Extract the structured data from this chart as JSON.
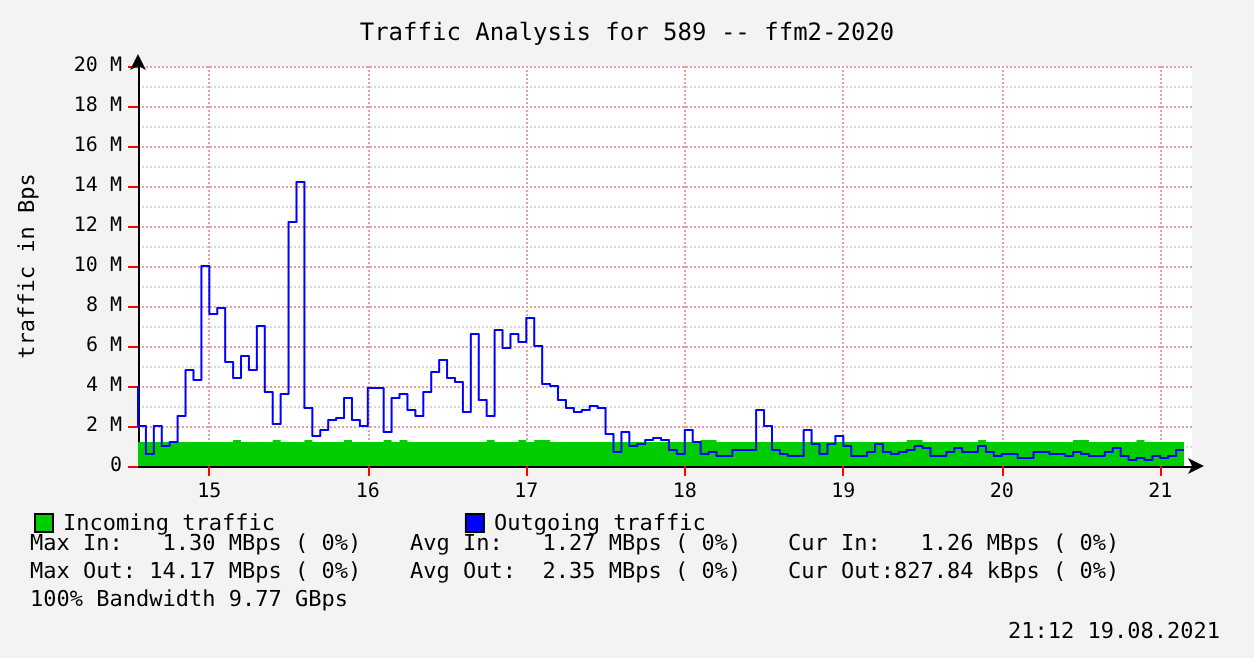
{
  "chart_data": {
    "type": "area",
    "title": "Traffic Analysis for 589 -- ffm2-2020",
    "ylabel": "traffic in Bps",
    "x": [
      14.55,
      14.6,
      14.65,
      14.7,
      14.75,
      14.8,
      14.85,
      14.9,
      14.95,
      15,
      15.05,
      15.1,
      15.15,
      15.2,
      15.25,
      15.3,
      15.35,
      15.4,
      15.45,
      15.5,
      15.55,
      15.6,
      15.65,
      15.7,
      15.75,
      15.8,
      15.85,
      15.9,
      15.95,
      16,
      16.05,
      16.1,
      16.15,
      16.2,
      16.25,
      16.3,
      16.35,
      16.4,
      16.45,
      16.5,
      16.55,
      16.6,
      16.65,
      16.7,
      16.75,
      16.8,
      16.85,
      16.9,
      16.95,
      17,
      17.05,
      17.1,
      17.15,
      17.2,
      17.25,
      17.3,
      17.35,
      17.4,
      17.45,
      17.5,
      17.55,
      17.6,
      17.65,
      17.7,
      17.75,
      17.8,
      17.85,
      17.9,
      17.95,
      18,
      18.05,
      18.1,
      18.15,
      18.2,
      18.25,
      18.3,
      18.35,
      18.4,
      18.45,
      18.5,
      18.55,
      18.6,
      18.65,
      18.7,
      18.75,
      18.8,
      18.85,
      18.9,
      18.95,
      19,
      19.05,
      19.1,
      19.15,
      19.2,
      19.25,
      19.3,
      19.35,
      19.4,
      19.45,
      19.5,
      19.55,
      19.6,
      19.65,
      19.7,
      19.75,
      19.8,
      19.85,
      19.9,
      19.95,
      20,
      20.05,
      20.1,
      20.15,
      20.2,
      20.25,
      20.3,
      20.35,
      20.4,
      20.45,
      20.5,
      20.55,
      20.6,
      20.65,
      20.7,
      20.75,
      20.8,
      20.85,
      20.9,
      20.95,
      21,
      21.05,
      21.1,
      21.15
    ],
    "series": [
      {
        "name": "Incoming traffic",
        "color": "#00cc00",
        "values": [
          1.2,
          1.2,
          1.2,
          1.2,
          1.2,
          1.2,
          1.2,
          1.2,
          1.2,
          1.2,
          1.2,
          1.2,
          1.2,
          1.3,
          1.2,
          1.2,
          1.2,
          1.2,
          1.3,
          1.2,
          1.2,
          1.2,
          1.3,
          1.2,
          1.2,
          1.2,
          1.2,
          1.3,
          1.2,
          1.2,
          1.2,
          1.2,
          1.3,
          1.2,
          1.3,
          1.2,
          1.2,
          1.2,
          1.2,
          1.2,
          1.2,
          1.2,
          1.2,
          1.2,
          1.2,
          1.3,
          1.2,
          1.2,
          1.2,
          1.3,
          1.2,
          1.3,
          1.3,
          1.2,
          1.2,
          1.2,
          1.2,
          1.2,
          1.2,
          1.2,
          1.2,
          1.2,
          1.2,
          1.2,
          1.2,
          1.2,
          1.2,
          1.2,
          1.2,
          1.2,
          1.2,
          1.2,
          1.3,
          1.3,
          1.2,
          1.2,
          1.2,
          1.2,
          1.2,
          1.2,
          1.2,
          1.2,
          1.2,
          1.2,
          1.2,
          1.2,
          1.2,
          1.2,
          1.2,
          1.2,
          1.2,
          1.2,
          1.2,
          1.2,
          1.2,
          1.2,
          1.2,
          1.2,
          1.3,
          1.3,
          1.2,
          1.2,
          1.2,
          1.2,
          1.2,
          1.2,
          1.2,
          1.3,
          1.2,
          1.2,
          1.2,
          1.2,
          1.2,
          1.2,
          1.2,
          1.2,
          1.2,
          1.2,
          1.2,
          1.3,
          1.3,
          1.2,
          1.2,
          1.2,
          1.2,
          1.2,
          1.2,
          1.3,
          1.2,
          1.2,
          1.2,
          1.2,
          1.2
        ]
      },
      {
        "name": "Outgoing traffic",
        "type": "step",
        "color": "#0000ff",
        "values": [
          4.0,
          2.0,
          0.6,
          2.0,
          1.0,
          1.2,
          2.5,
          4.8,
          4.3,
          10.0,
          7.6,
          7.9,
          5.2,
          4.4,
          5.5,
          4.8,
          7.0,
          3.7,
          2.1,
          3.6,
          12.2,
          14.2,
          2.9,
          1.5,
          1.8,
          2.3,
          2.4,
          3.4,
          2.3,
          2.0,
          3.9,
          3.9,
          1.7,
          3.4,
          3.6,
          2.8,
          2.5,
          3.7,
          4.7,
          5.3,
          4.4,
          4.2,
          2.7,
          6.6,
          3.3,
          2.5,
          6.8,
          5.9,
          6.6,
          6.2,
          7.4,
          6.0,
          4.1,
          4.0,
          3.3,
          2.9,
          2.7,
          2.8,
          3.0,
          2.9,
          1.6,
          0.7,
          1.7,
          1.0,
          1.1,
          1.3,
          1.4,
          1.3,
          0.8,
          0.6,
          1.8,
          1.2,
          0.6,
          0.7,
          0.5,
          0.5,
          0.8,
          0.8,
          0.8,
          2.8,
          2.0,
          0.8,
          0.6,
          0.5,
          0.5,
          1.8,
          1.1,
          0.6,
          1.1,
          1.5,
          1.0,
          0.5,
          0.5,
          0.7,
          1.1,
          0.7,
          0.6,
          0.7,
          0.8,
          1.0,
          0.9,
          0.5,
          0.5,
          0.7,
          0.9,
          0.7,
          0.7,
          1.0,
          0.7,
          0.5,
          0.6,
          0.6,
          0.4,
          0.4,
          0.7,
          0.7,
          0.6,
          0.6,
          0.5,
          0.7,
          0.6,
          0.5,
          0.5,
          0.7,
          0.9,
          0.5,
          0.3,
          0.4,
          0.3,
          0.5,
          0.4,
          0.5,
          0.8
        ]
      }
    ],
    "xlim": [
      14.55,
      21.2
    ],
    "xticks": [
      15,
      16,
      17,
      18,
      19,
      20,
      21
    ],
    "ylim": [
      0,
      20
    ],
    "yticks": [
      0,
      {
        "value": 2,
        "label": "2 M"
      },
      {
        "value": 4,
        "label": "4 M"
      },
      {
        "value": 6,
        "label": "6 M"
      },
      {
        "value": 8,
        "label": "8 M"
      },
      {
        "value": 10,
        "label": "10 M"
      },
      {
        "value": 12,
        "label": "12 M"
      },
      {
        "value": 14,
        "label": "14 M"
      },
      {
        "value": 16,
        "label": "16 M"
      },
      {
        "value": 18,
        "label": "18 M"
      },
      {
        "value": 20,
        "label": "20 M"
      }
    ],
    "grid": true,
    "legend": "bottom left",
    "annotations": [
      "Max In:   1.30 MBps ( 0%)",
      "Avg In:   1.27 MBps ( 0%)",
      "Cur In:   1.26 MBps ( 0%)",
      "Max Out: 14.17 MBps ( 0%)",
      "Avg Out:  2.35 MBps ( 0%)",
      "Cur Out:827.84 kBps ( 0%)",
      "100% Bandwidth 9.77 GBps",
      "21:12 19.08.2021"
    ]
  }
}
